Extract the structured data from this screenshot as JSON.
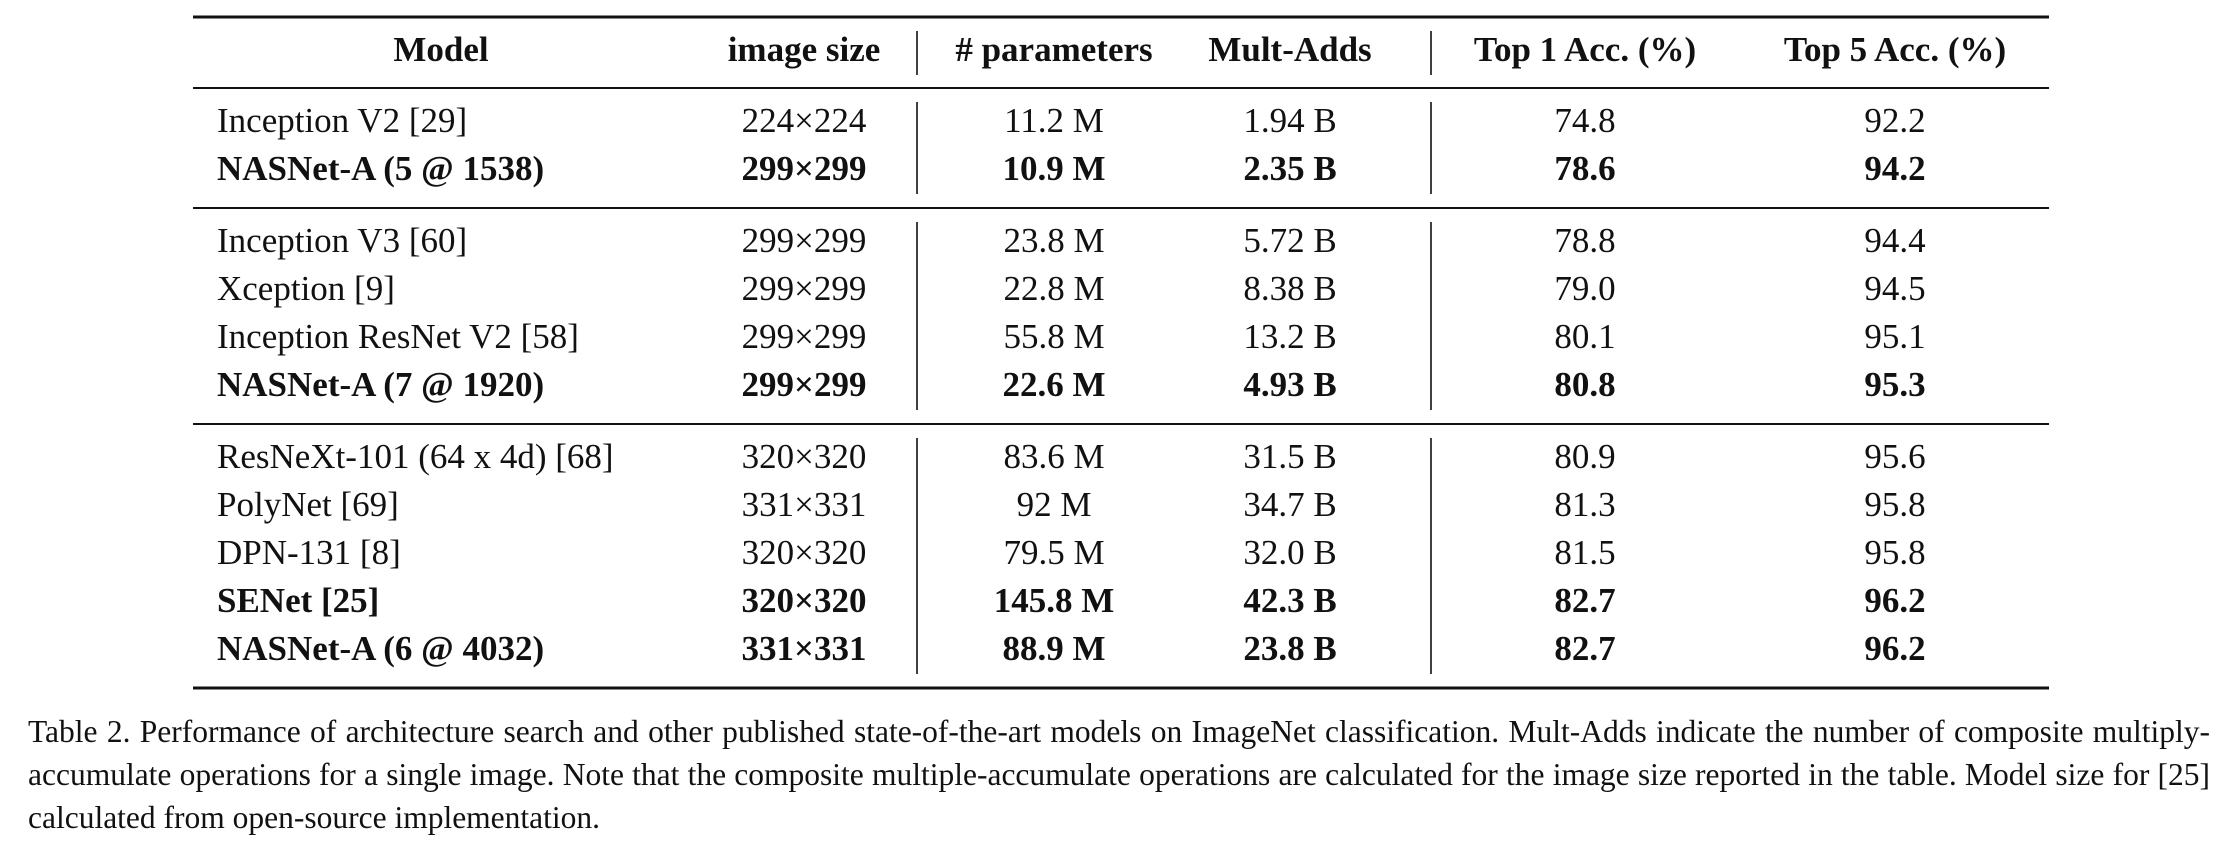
{
  "table": {
    "header": [
      "Model",
      "image size",
      "# parameters",
      "Mult-Adds",
      "Top 1 Acc. (%)",
      "Top 5 Acc. (%)"
    ],
    "groups": [
      {
        "rows": [
          {
            "cells": [
              "Inception V2 [29]",
              "224×224",
              "11.2 M",
              "1.94 B",
              "74.8",
              "92.2"
            ],
            "bold": false
          },
          {
            "cells": [
              "NASNet-A (5 @ 1538)",
              "299×299",
              "10.9 M",
              "2.35 B",
              "78.6",
              "94.2"
            ],
            "bold": true
          }
        ]
      },
      {
        "rows": [
          {
            "cells": [
              "Inception V3 [60]",
              "299×299",
              "23.8 M",
              "5.72 B",
              "78.8",
              "94.4"
            ],
            "bold": false
          },
          {
            "cells": [
              "Xception [9]",
              "299×299",
              "22.8 M",
              "8.38 B",
              "79.0",
              "94.5"
            ],
            "bold": false
          },
          {
            "cells": [
              "Inception ResNet V2 [58]",
              "299×299",
              "55.8 M",
              "13.2 B",
              "80.1",
              "95.1"
            ],
            "bold": false
          },
          {
            "cells": [
              "NASNet-A (7 @ 1920)",
              "299×299",
              "22.6 M",
              "4.93 B",
              "80.8",
              "95.3"
            ],
            "bold": true
          }
        ]
      },
      {
        "rows": [
          {
            "cells": [
              "ResNeXt-101 (64 x 4d) [68]",
              "320×320",
              "83.6 M",
              "31.5 B",
              "80.9",
              "95.6"
            ],
            "bold": false
          },
          {
            "cells": [
              "PolyNet [69]",
              "331×331",
              "92 M",
              "34.7 B",
              "81.3",
              "95.8"
            ],
            "bold": false
          },
          {
            "cells": [
              "DPN-131 [8]",
              "320×320",
              "79.5 M",
              "32.0 B",
              "81.5",
              "95.8"
            ],
            "bold": false
          },
          {
            "cells": [
              "SENet [25]",
              "320×320",
              "145.8 M",
              "42.3 B",
              "82.7",
              "96.2"
            ],
            "bold": true
          },
          {
            "cells": [
              "NASNet-A (6 @ 4032)",
              "331×331",
              "88.9 M",
              "23.8 B",
              "82.7",
              "96.2"
            ],
            "bold": true
          }
        ]
      }
    ]
  },
  "caption": "Table 2. Performance of architecture search and other published state-of-the-art models on ImageNet classification. Mult-Adds indicate the number of composite multiply-accumulate operations for a single image. Note that the composite multiple-accumulate operations are calculated for the image size reported in the table. Model size for [25] calculated from open-source implementation."
}
